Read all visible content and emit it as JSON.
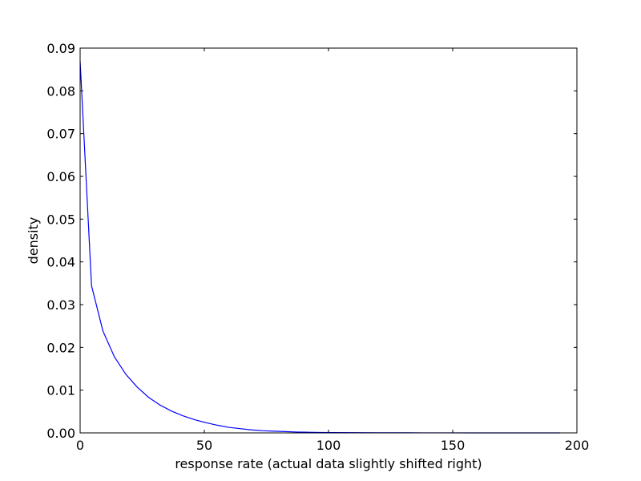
{
  "chart_data": {
    "type": "line",
    "title": "",
    "xlabel": "response rate (actual data slightly shifted right)",
    "ylabel": "density",
    "xlim": [
      0,
      200
    ],
    "ylim": [
      0,
      0.09
    ],
    "xticks": [
      0,
      50,
      100,
      150,
      200
    ],
    "yticks": [
      0.0,
      0.01,
      0.02,
      0.03,
      0.04,
      0.05,
      0.06,
      0.07,
      0.08,
      0.09
    ],
    "xtick_labels": [
      "0",
      "50",
      "100",
      "150",
      "200"
    ],
    "ytick_labels": [
      "0.00",
      "0.01",
      "0.02",
      "0.03",
      "0.04",
      "0.05",
      "0.06",
      "0.07",
      "0.08",
      "0.09"
    ],
    "grid": false,
    "legend": "none",
    "series": [
      {
        "color": "#0000ff",
        "x": [
          0,
          4.6,
          9.2,
          13.8,
          18.4,
          23.0,
          27.6,
          32.2,
          36.8,
          41.4,
          46.0,
          50.6,
          55.2,
          59.8,
          64.4,
          69.0,
          73.6,
          78.2,
          82.8,
          87.4,
          92.0,
          96.6,
          101.2,
          110.4,
          119.6,
          128.8,
          138.0,
          147.2,
          156.4,
          165.6,
          174.8,
          184.0,
          193.2
        ],
        "y": [
          0.087,
          0.0344,
          0.0238,
          0.0178,
          0.0137,
          0.0107,
          0.0083,
          0.0065,
          0.0051,
          0.004,
          0.0031,
          0.0024,
          0.0018,
          0.0013,
          0.001,
          0.0007,
          0.0005,
          0.0004,
          0.0003,
          0.0002,
          0.00015,
          0.0001,
          8e-05,
          5e-05,
          3e-05,
          2e-05,
          1e-05,
          1e-05,
          0.0,
          0.0,
          0.0,
          0.0,
          0.0
        ]
      }
    ]
  }
}
